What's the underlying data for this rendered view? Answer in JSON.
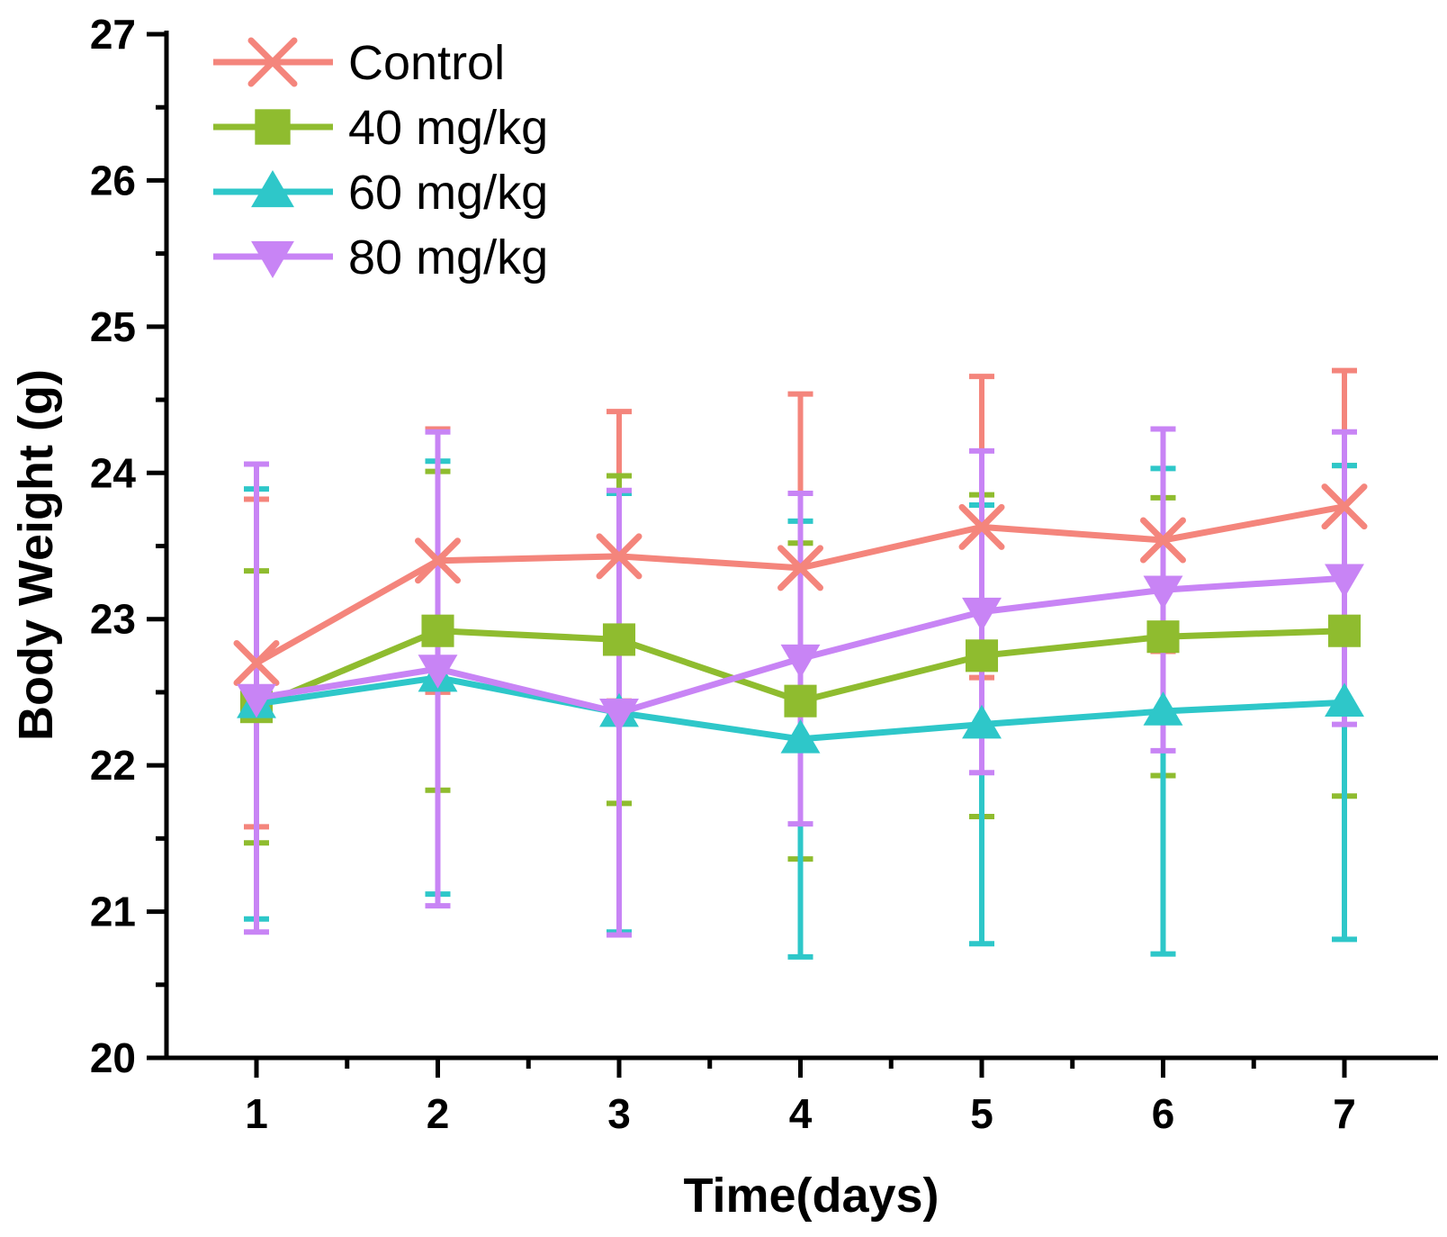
{
  "chart_data": {
    "type": "line",
    "title": "",
    "xlabel": "Time(days)",
    "ylabel": "Body Weight (g)",
    "x": [
      1,
      2,
      3,
      4,
      5,
      6,
      7
    ],
    "xlim": [
      0.5,
      7.5
    ],
    "ylim": [
      20,
      27
    ],
    "yticks": [
      20,
      21,
      22,
      23,
      24,
      25,
      26,
      27
    ],
    "yminor": 0.5,
    "legend_position": "top-left",
    "series": [
      {
        "name": "Control",
        "marker": "x",
        "color": "#f4857c",
        "values": [
          22.7,
          23.4,
          23.43,
          23.35,
          23.63,
          23.54,
          23.77
        ],
        "errors": [
          1.12,
          0.9,
          0.99,
          1.19,
          1.03,
          0.76,
          0.93
        ]
      },
      {
        "name": "40 mg/kg",
        "marker": "square",
        "color": "#8fbc2f",
        "values": [
          22.4,
          22.92,
          22.86,
          22.44,
          22.75,
          22.88,
          22.92
        ],
        "errors": [
          0.93,
          1.09,
          1.12,
          1.08,
          1.1,
          0.95,
          1.13
        ]
      },
      {
        "name": "60 mg/kg",
        "marker": "triangle-up",
        "color": "#2ec7c9",
        "values": [
          22.42,
          22.6,
          22.36,
          22.18,
          22.28,
          22.37,
          22.43
        ],
        "errors": [
          1.47,
          1.48,
          1.5,
          1.49,
          1.5,
          1.66,
          1.62
        ]
      },
      {
        "name": "80 mg/kg",
        "marker": "triangle-down",
        "color": "#c884f5",
        "values": [
          22.46,
          22.66,
          22.36,
          22.73,
          23.05,
          23.2,
          23.28
        ],
        "errors": [
          1.6,
          1.62,
          1.52,
          1.13,
          1.1,
          1.1,
          1.0
        ]
      }
    ]
  }
}
